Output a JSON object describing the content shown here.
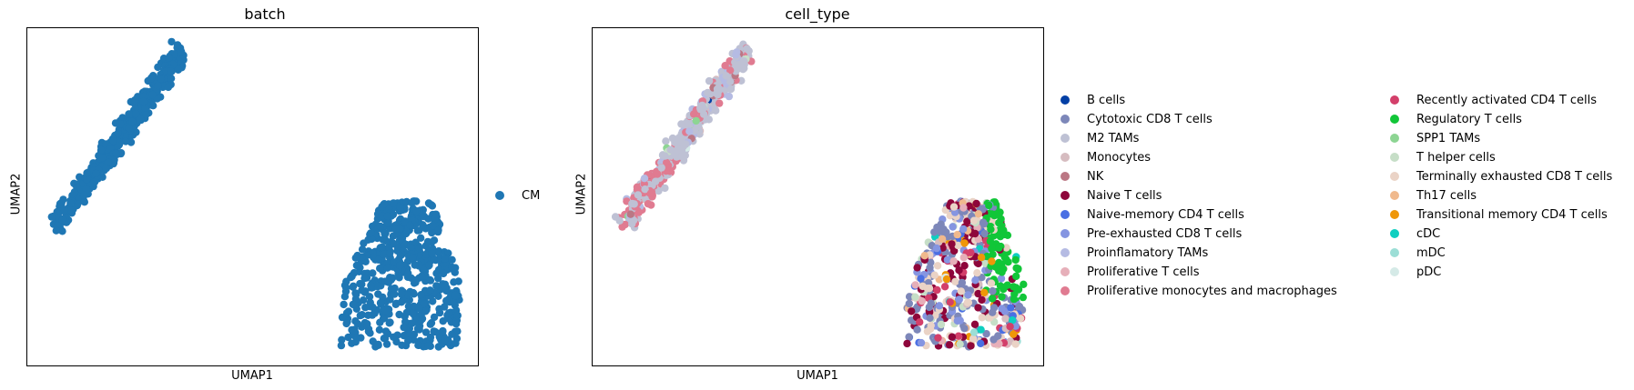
{
  "chart_data": [
    {
      "type": "scatter",
      "title": "batch",
      "xlabel": "UMAP1",
      "ylabel": "UMAP2",
      "grid": false,
      "legend_placement": "right",
      "xticks": "none",
      "yticks": "none",
      "series": [
        {
          "name": "CM",
          "color": "#1f77b4",
          "clusters": [
            {
              "shape": "diagonal band",
              "x": [
                0.05,
                0.36
              ],
              "y": [
                0.38,
                0.98
              ]
            },
            {
              "shape": "upright blob",
              "x": [
                0.72,
                0.96
              ],
              "y": [
                0.04,
                0.5
              ]
            }
          ]
        }
      ]
    },
    {
      "type": "scatter",
      "title": "cell_type",
      "xlabel": "UMAP1",
      "ylabel": "UMAP2",
      "grid": false,
      "legend_placement": "right",
      "xticks": "none",
      "yticks": "none",
      "categories": [
        {
          "name": "B cells",
          "color": "#023fa5"
        },
        {
          "name": "Cytotoxic CD8 T cells",
          "color": "#7d87b9"
        },
        {
          "name": "M2 TAMs",
          "color": "#bec1d4"
        },
        {
          "name": "Monocytes",
          "color": "#d6bcc0"
        },
        {
          "name": "NK",
          "color": "#bb7784"
        },
        {
          "name": "Naive T cells",
          "color": "#8e063b"
        },
        {
          "name": "Naive-memory CD4 T cells",
          "color": "#4a6fe3"
        },
        {
          "name": "Pre-exhausted CD8 T cells",
          "color": "#8595e1"
        },
        {
          "name": "Proinflamatory TAMs",
          "color": "#b5bbe3"
        },
        {
          "name": "Proliferative T cells",
          "color": "#e6afb9"
        },
        {
          "name": "Proliferative monocytes and macrophages",
          "color": "#e07b91"
        },
        {
          "name": "Recently activated CD4 T cells",
          "color": "#d33f6a"
        },
        {
          "name": "Regulatory T cells",
          "color": "#11c638"
        },
        {
          "name": "SPP1 TAMs",
          "color": "#8dd593"
        },
        {
          "name": "T helper cells",
          "color": "#c6dec7"
        },
        {
          "name": "Terminally exhausted CD8 T cells",
          "color": "#ead3c6"
        },
        {
          "name": "Th17 cells",
          "color": "#f0b98d"
        },
        {
          "name": "Transitional memory CD4 T cells",
          "color": "#ef9708"
        },
        {
          "name": "cDC",
          "color": "#0fcfc0"
        },
        {
          "name": "mDC",
          "color": "#9cded6"
        },
        {
          "name": "pDC",
          "color": "#d5eae7"
        }
      ]
    }
  ]
}
